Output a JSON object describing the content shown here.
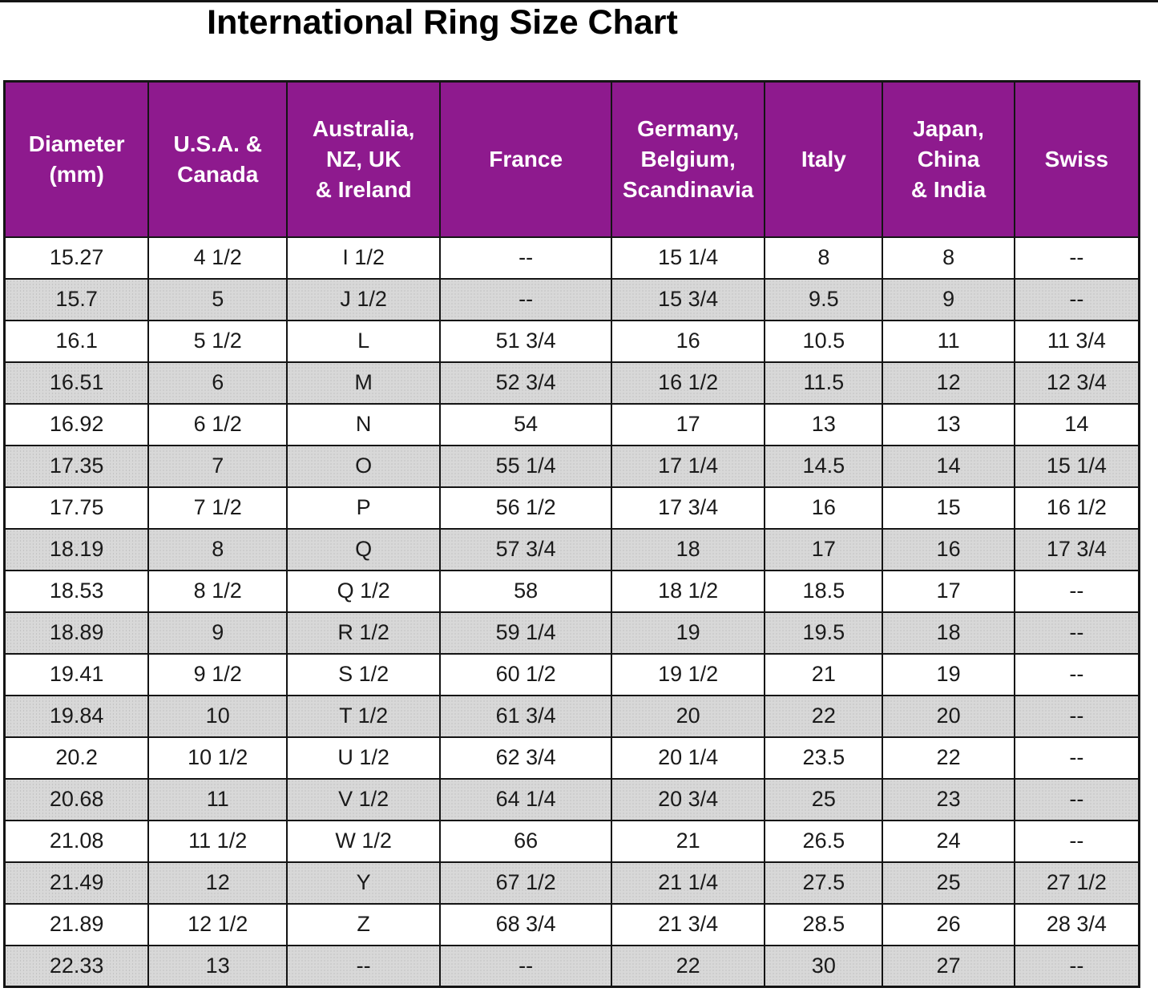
{
  "title": "International Ring Size Chart",
  "chart_data": {
    "type": "table",
    "title": "International Ring Size Chart",
    "columns": [
      "Diameter (mm)",
      "U.S.A. & Canada",
      "Australia, NZ, UK & Ireland",
      "France",
      "Germany, Belgium, Scandinavia",
      "Italy",
      "Japan, China & India",
      "Swiss"
    ],
    "header_display": [
      "Diameter\n(mm)",
      "U.S.A. &\nCanada",
      "Australia,\nNZ, UK\n& Ireland",
      "France",
      "Germany,\nBelgium,\nScandinavia",
      "Italy",
      "Japan,\nChina\n& India",
      "Swiss"
    ],
    "rows": [
      [
        "15.27",
        "4 1/2",
        "I 1/2",
        "--",
        "15 1/4",
        "8",
        "8",
        "--"
      ],
      [
        "15.7",
        "5",
        "J 1/2",
        "--",
        "15 3/4",
        "9.5",
        "9",
        "--"
      ],
      [
        "16.1",
        "5 1/2",
        "L",
        "51 3/4",
        "16",
        "10.5",
        "11",
        "11 3/4"
      ],
      [
        "16.51",
        "6",
        "M",
        "52 3/4",
        "16 1/2",
        "11.5",
        "12",
        "12 3/4"
      ],
      [
        "16.92",
        "6 1/2",
        "N",
        "54",
        "17",
        "13",
        "13",
        "14"
      ],
      [
        "17.35",
        "7",
        "O",
        "55 1/4",
        "17 1/4",
        "14.5",
        "14",
        "15 1/4"
      ],
      [
        "17.75",
        "7 1/2",
        "P",
        "56 1/2",
        "17 3/4",
        "16",
        "15",
        "16 1/2"
      ],
      [
        "18.19",
        "8",
        "Q",
        "57 3/4",
        "18",
        "17",
        "16",
        "17 3/4"
      ],
      [
        "18.53",
        "8 1/2",
        "Q 1/2",
        "58",
        "18 1/2",
        "18.5",
        "17",
        "--"
      ],
      [
        "18.89",
        "9",
        "R 1/2",
        "59 1/4",
        "19",
        "19.5",
        "18",
        "--"
      ],
      [
        "19.41",
        "9 1/2",
        "S 1/2",
        "60 1/2",
        "19 1/2",
        "21",
        "19",
        "--"
      ],
      [
        "19.84",
        "10",
        "T 1/2",
        "61 3/4",
        "20",
        "22",
        "20",
        "--"
      ],
      [
        "20.2",
        "10 1/2",
        "U 1/2",
        "62 3/4",
        "20 1/4",
        "23.5",
        "22",
        "--"
      ],
      [
        "20.68",
        "11",
        "V 1/2",
        "64 1/4",
        "20 3/4",
        "25",
        "23",
        "--"
      ],
      [
        "21.08",
        "11 1/2",
        "W 1/2",
        "66",
        "21",
        "26.5",
        "24",
        "--"
      ],
      [
        "21.49",
        "12",
        "Y",
        "67 1/2",
        "21 1/4",
        "27.5",
        "25",
        "27 1/2"
      ],
      [
        "21.89",
        "12 1/2",
        "Z",
        "68 3/4",
        "21 3/4",
        "28.5",
        "26",
        "28 3/4"
      ],
      [
        "22.33",
        "13",
        "--",
        "--",
        "22",
        "30",
        "27",
        "--"
      ]
    ],
    "layout": {
      "header_background": "purple",
      "row_striping": "white / dotted gray alternating",
      "grid": true
    }
  },
  "colors": {
    "header_bg": "#8E1A8E",
    "header_text": "#FFFFFF",
    "row_even_bg": "#CDCDCD",
    "row_odd_bg": "#FFFFFF",
    "border": "#141414",
    "title_text": "#000000"
  }
}
